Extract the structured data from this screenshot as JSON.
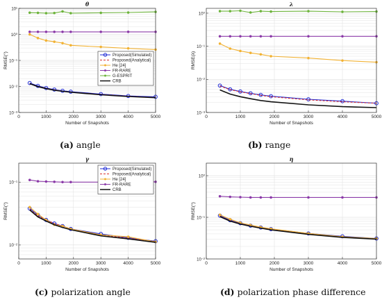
{
  "colors": {
    "proposed_sim": "#1f2bd6",
    "proposed_ana": "#d93030",
    "he": "#f2b233",
    "frrare": "#8b3aa8",
    "gesprit": "#6cb33a",
    "crb": "#111111",
    "grid": "#e3e3e3"
  },
  "chart_data": [
    {
      "id": "theta",
      "type": "line",
      "title": "θ",
      "xlabel": "Number of Snapshots",
      "ylabel": "RMSE(°)",
      "yscale": "log",
      "xlim": [
        0,
        5000
      ],
      "ylim": [
        0.001,
        10
      ],
      "xticks": [
        "0",
        "1000",
        "2000",
        "3000",
        "4000",
        "5000"
      ],
      "yticks": [
        "10⁻³",
        "10⁻²",
        "10⁻¹",
        "10⁰",
        "10¹"
      ],
      "legend_position": "middle-right",
      "caption_tag": "(a)",
      "caption_text": "angle",
      "series": [
        {
          "name": "Proposed(Simulated)",
          "key": "proposed_sim",
          "marker": "circle",
          "x": [
            400,
            700,
            1000,
            1300,
            1600,
            1900,
            3000,
            4000,
            5000
          ],
          "y": [
            0.0135,
            0.0105,
            0.0087,
            0.0076,
            0.0068,
            0.0063,
            0.0051,
            0.0043,
            0.004
          ]
        },
        {
          "name": "Proposed(Analytical)",
          "key": "proposed_ana",
          "marker": "none",
          "dash": true,
          "x": [
            400,
            700,
            1000,
            1300,
            1600,
            1900,
            3000,
            4000,
            5000
          ],
          "y": [
            0.013,
            0.01,
            0.0084,
            0.0074,
            0.0066,
            0.0061,
            0.0049,
            0.0042,
            0.0038
          ]
        },
        {
          "name": "He [24]",
          "key": "he",
          "marker": "dot",
          "x": [
            400,
            700,
            1000,
            1300,
            1600,
            1900,
            3000,
            4000,
            5000
          ],
          "y": [
            1.0,
            0.72,
            0.58,
            0.52,
            0.46,
            0.38,
            0.33,
            0.29,
            0.26
          ]
        },
        {
          "name": "FR-RARE",
          "key": "frrare",
          "marker": "dot",
          "x": [
            400,
            700,
            1000,
            1300,
            1600,
            1900,
            3000,
            4000,
            5000
          ],
          "y": [
            1.25,
            1.25,
            1.25,
            1.25,
            1.25,
            1.25,
            1.25,
            1.25,
            1.25
          ]
        },
        {
          "name": "G-ESPRIT",
          "key": "gesprit",
          "marker": "dot",
          "x": [
            400,
            700,
            1000,
            1300,
            1600,
            1900,
            3000,
            4000,
            5000
          ],
          "y": [
            6.8,
            6.7,
            6.5,
            6.6,
            7.6,
            6.5,
            6.7,
            6.9,
            7.3
          ]
        },
        {
          "name": "CRB",
          "key": "crb",
          "marker": "none",
          "x": [
            400,
            700,
            1000,
            1300,
            1600,
            1900,
            3000,
            4000,
            5000
          ],
          "y": [
            0.0128,
            0.0098,
            0.0082,
            0.0072,
            0.0065,
            0.006,
            0.0048,
            0.0041,
            0.0037
          ]
        }
      ]
    },
    {
      "id": "lambda",
      "type": "line",
      "title": "λ",
      "xlabel": "Number of Snapshots",
      "ylabel": "RMSE(λ)",
      "yscale": "log",
      "xlim": [
        0,
        5000
      ],
      "ylim": [
        0.001,
        1.4
      ],
      "xticks": [
        "0",
        "1000",
        "2000",
        "3000",
        "4000",
        "5000"
      ],
      "yticks": [
        "10⁻³",
        "10⁻²",
        "10⁻¹",
        "10⁰"
      ],
      "legend_position": "none",
      "caption_tag": "(b)",
      "caption_text": "range",
      "series": [
        {
          "name": "Proposed(Simulated)",
          "key": "proposed_sim",
          "marker": "circle",
          "x": [
            400,
            700,
            1000,
            1300,
            1600,
            1900,
            3000,
            4000,
            5000
          ],
          "y": [
            0.0065,
            0.005,
            0.0043,
            0.0038,
            0.0034,
            0.0031,
            0.0025,
            0.0022,
            0.0019
          ]
        },
        {
          "name": "Proposed(Analytical)",
          "key": "proposed_ana",
          "marker": "none",
          "dash": true,
          "x": [
            400,
            700,
            1000,
            1300,
            1600,
            1900,
            3000,
            4000,
            5000
          ],
          "y": [
            0.0063,
            0.0049,
            0.0042,
            0.0037,
            0.0033,
            0.003,
            0.0024,
            0.0021,
            0.0019
          ]
        },
        {
          "name": "He [24]",
          "key": "he",
          "marker": "dot",
          "x": [
            400,
            700,
            1000,
            1300,
            1600,
            1900,
            3000,
            4000,
            5000
          ],
          "y": [
            0.12,
            0.085,
            0.072,
            0.063,
            0.057,
            0.05,
            0.044,
            0.037,
            0.033
          ]
        },
        {
          "name": "FR-RARE",
          "key": "frrare",
          "marker": "dot",
          "x": [
            400,
            700,
            1000,
            1300,
            1600,
            1900,
            3000,
            4000,
            5000
          ],
          "y": [
            0.2,
            0.2,
            0.2,
            0.2,
            0.2,
            0.2,
            0.2,
            0.2,
            0.2
          ]
        },
        {
          "name": "G-ESPRIT",
          "key": "gesprit",
          "marker": "dot",
          "x": [
            400,
            700,
            1000,
            1300,
            1600,
            1900,
            3000,
            4000,
            5000
          ],
          "y": [
            1.15,
            1.15,
            1.18,
            1.05,
            1.15,
            1.12,
            1.15,
            1.1,
            1.12
          ]
        },
        {
          "name": "CRB",
          "key": "crb",
          "marker": "none",
          "x": [
            400,
            700,
            1000,
            1300,
            1600,
            1900,
            3000,
            4000,
            5000
          ],
          "y": [
            0.0048,
            0.0036,
            0.003,
            0.0026,
            0.0023,
            0.0021,
            0.0017,
            0.0015,
            0.0014
          ]
        }
      ]
    },
    {
      "id": "gamma",
      "type": "line",
      "title": "γ",
      "xlabel": "Number of Snapshots",
      "ylabel": "RMSE(°)",
      "yscale": "log",
      "xlim": [
        0,
        5000
      ],
      "ylim": [
        0.006,
        0.2
      ],
      "xticks": [
        "0",
        "1000",
        "2000",
        "3000",
        "4000",
        "5000"
      ],
      "yticks": [
        "10⁻²",
        "10⁻¹"
      ],
      "legend_position": "top-right",
      "caption_tag": "(c)",
      "caption_text": "polarization angle",
      "series": [
        {
          "name": "Proposed(Simulated)",
          "key": "proposed_sim",
          "marker": "circle",
          "x": [
            400,
            700,
            1000,
            1300,
            1600,
            1900,
            3000,
            4000,
            5000
          ],
          "y": [
            0.038,
            0.03,
            0.025,
            0.022,
            0.02,
            0.018,
            0.015,
            0.013,
            0.0115
          ]
        },
        {
          "name": "Proposed(Analytical)",
          "key": "proposed_ana",
          "marker": "none",
          "dash": true,
          "x": [
            400,
            700,
            1000,
            1300,
            1600,
            1900,
            3000,
            4000,
            5000
          ],
          "y": [
            0.037,
            0.029,
            0.025,
            0.022,
            0.02,
            0.018,
            0.0145,
            0.0128,
            0.0114
          ]
        },
        {
          "name": "He [24]",
          "key": "he",
          "marker": "dot",
          "x": [
            400,
            700,
            1000,
            1300,
            1600,
            1900,
            3000,
            4000,
            5000
          ],
          "y": [
            0.04,
            0.031,
            0.025,
            0.021,
            0.02,
            0.018,
            0.0145,
            0.0135,
            0.0112
          ]
        },
        {
          "name": "FR-RARE",
          "key": "frrare",
          "marker": "dot",
          "x": [
            400,
            700,
            1000,
            1300,
            1600,
            1900,
            3000,
            4000,
            5000
          ],
          "y": [
            0.108,
            0.103,
            0.102,
            0.101,
            0.1,
            0.1,
            0.1,
            0.1,
            0.101
          ]
        },
        {
          "name": "CRB",
          "key": "crb",
          "marker": "none",
          "x": [
            400,
            700,
            1000,
            1300,
            1600,
            1900,
            3000,
            4000,
            5000
          ],
          "y": [
            0.036,
            0.028,
            0.024,
            0.021,
            0.019,
            0.0175,
            0.014,
            0.0125,
            0.011
          ]
        }
      ]
    },
    {
      "id": "eta",
      "type": "line",
      "title": "η",
      "xlabel": "Number of Snapshots",
      "ylabel": "RMSE(°)",
      "yscale": "log",
      "xlim": [
        0,
        5000
      ],
      "ylim": [
        0.01,
        2
      ],
      "xticks": [
        "0",
        "1000",
        "2000",
        "3000",
        "4000",
        "5000"
      ],
      "yticks": [
        "10⁻²",
        "10⁻¹",
        "10⁰"
      ],
      "legend_position": "none",
      "caption_tag": "(d)",
      "caption_text": "polarization phase difference",
      "series": [
        {
          "name": "Proposed(Simulated)",
          "key": "proposed_sim",
          "marker": "circle",
          "x": [
            400,
            700,
            1000,
            1300,
            1600,
            1900,
            3000,
            4000,
            5000
          ],
          "y": [
            0.11,
            0.085,
            0.072,
            0.063,
            0.057,
            0.052,
            0.041,
            0.035,
            0.031
          ]
        },
        {
          "name": "Proposed(Analytical)",
          "key": "proposed_ana",
          "marker": "none",
          "dash": true,
          "x": [
            400,
            700,
            1000,
            1300,
            1600,
            1900,
            3000,
            4000,
            5000
          ],
          "y": [
            0.107,
            0.083,
            0.07,
            0.062,
            0.056,
            0.051,
            0.04,
            0.034,
            0.03
          ]
        },
        {
          "name": "He [24]",
          "key": "he",
          "marker": "dot",
          "x": [
            400,
            700,
            1000,
            1300,
            1600,
            1900,
            3000,
            4000,
            5000
          ],
          "y": [
            0.115,
            0.09,
            0.074,
            0.065,
            0.058,
            0.053,
            0.041,
            0.034,
            0.031
          ]
        },
        {
          "name": "FR-RARE",
          "key": "frrare",
          "marker": "dot",
          "x": [
            400,
            700,
            1000,
            1300,
            1600,
            1900,
            3000,
            4000,
            5000
          ],
          "y": [
            0.32,
            0.31,
            0.305,
            0.3,
            0.3,
            0.3,
            0.3,
            0.3,
            0.3
          ]
        },
        {
          "name": "CRB",
          "key": "crb",
          "marker": "none",
          "x": [
            400,
            700,
            1000,
            1300,
            1600,
            1900,
            3000,
            4000,
            5000
          ],
          "y": [
            0.104,
            0.081,
            0.069,
            0.061,
            0.055,
            0.05,
            0.039,
            0.033,
            0.03
          ]
        }
      ]
    }
  ]
}
